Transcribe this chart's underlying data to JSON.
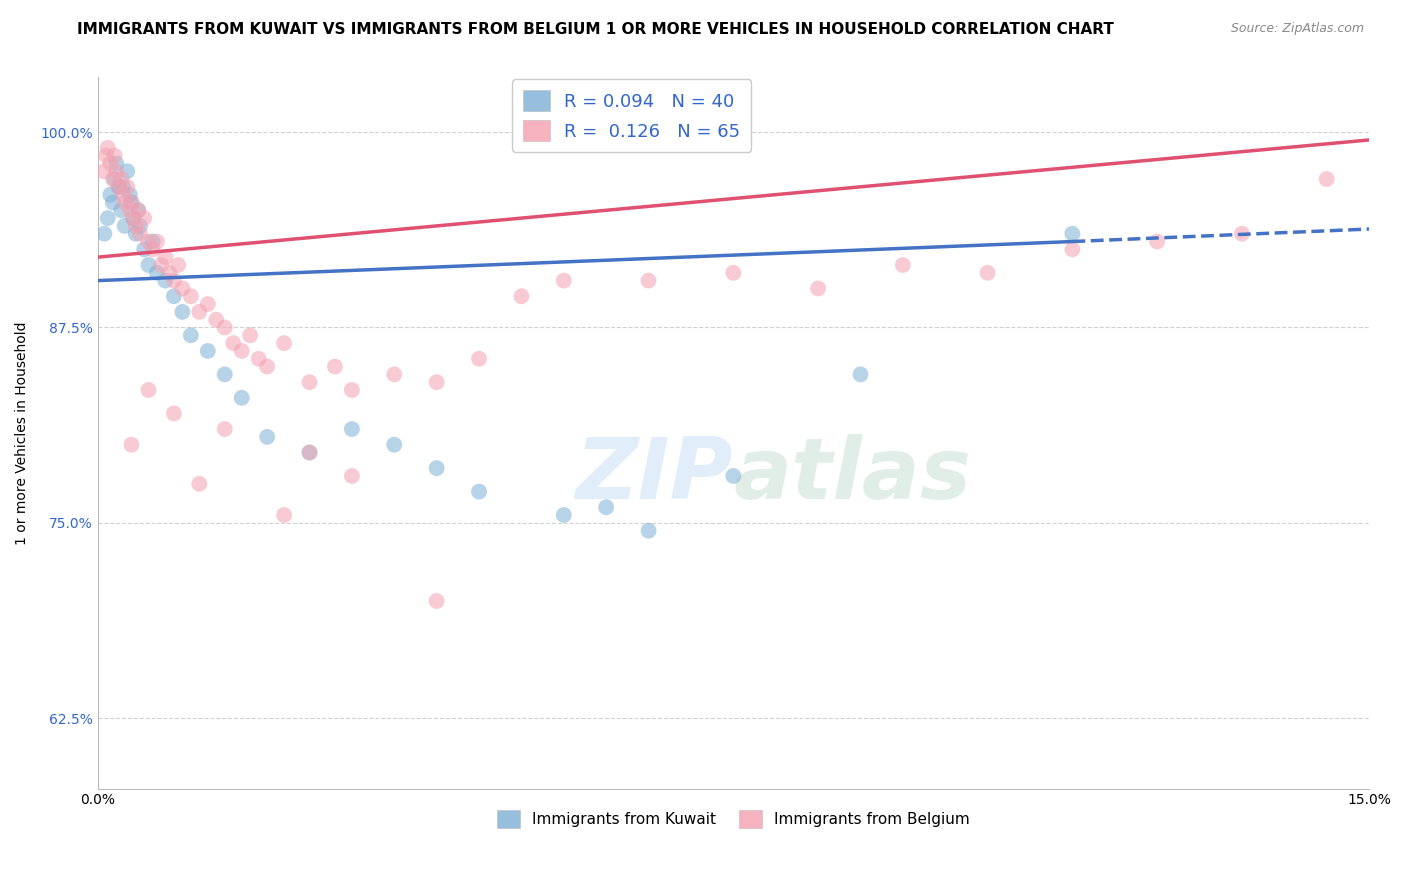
{
  "title": "IMMIGRANTS FROM KUWAIT VS IMMIGRANTS FROM BELGIUM 1 OR MORE VEHICLES IN HOUSEHOLD CORRELATION CHART",
  "source": "Source: ZipAtlas.com",
  "xlabel": "",
  "ylabel": "1 or more Vehicles in Household",
  "xlim": [
    0.0,
    15.0
  ],
  "ylim": [
    58.0,
    103.5
  ],
  "xticks": [
    0.0,
    5.0,
    10.0,
    15.0
  ],
  "xticklabels": [
    "0.0%",
    "",
    "",
    "15.0%"
  ],
  "yticks": [
    62.5,
    75.0,
    87.5,
    100.0
  ],
  "yticklabels": [
    "62.5%",
    "75.0%",
    "87.5%",
    "100.0%"
  ],
  "kuwait_R": 0.094,
  "kuwait_N": 40,
  "belgium_R": 0.126,
  "belgium_N": 65,
  "kuwait_color": "#7BAFD4",
  "belgium_color": "#F4A0B0",
  "kuwait_line_color": "#4472C4",
  "belgium_line_color": "#E05070",
  "kuwait_scatter_x": [
    0.08,
    0.12,
    0.15,
    0.18,
    0.2,
    0.22,
    0.25,
    0.28,
    0.3,
    0.32,
    0.35,
    0.38,
    0.4,
    0.42,
    0.45,
    0.48,
    0.5,
    0.55,
    0.6,
    0.65,
    0.7,
    0.8,
    0.9,
    1.0,
    1.1,
    1.3,
    1.5,
    1.7,
    2.0,
    2.5,
    3.0,
    3.5,
    4.0,
    4.5,
    5.5,
    6.0,
    6.5,
    7.5,
    9.0,
    11.5
  ],
  "kuwait_scatter_y": [
    93.5,
    94.5,
    96.0,
    95.5,
    97.0,
    98.0,
    96.5,
    95.0,
    96.5,
    94.0,
    97.5,
    96.0,
    95.5,
    94.5,
    93.5,
    95.0,
    94.0,
    92.5,
    91.5,
    93.0,
    91.0,
    90.5,
    89.5,
    88.5,
    87.0,
    86.0,
    84.5,
    83.0,
    80.5,
    79.5,
    81.0,
    80.0,
    78.5,
    77.0,
    75.5,
    76.0,
    74.5,
    78.0,
    84.5,
    93.5
  ],
  "belgium_scatter_x": [
    0.07,
    0.1,
    0.12,
    0.15,
    0.18,
    0.2,
    0.22,
    0.25,
    0.28,
    0.3,
    0.32,
    0.35,
    0.38,
    0.4,
    0.42,
    0.45,
    0.48,
    0.5,
    0.55,
    0.6,
    0.65,
    0.7,
    0.75,
    0.8,
    0.85,
    0.9,
    0.95,
    1.0,
    1.1,
    1.2,
    1.3,
    1.4,
    1.5,
    1.6,
    1.7,
    1.8,
    1.9,
    2.0,
    2.2,
    2.5,
    2.8,
    3.0,
    3.5,
    4.0,
    4.5,
    5.0,
    5.5,
    6.5,
    7.5,
    8.5,
    9.5,
    10.5,
    11.5,
    12.5,
    13.5,
    14.5,
    0.9,
    1.5,
    2.5,
    3.0,
    0.6,
    0.4,
    1.2,
    2.2,
    4.0
  ],
  "belgium_scatter_y": [
    97.5,
    98.5,
    99.0,
    98.0,
    97.0,
    98.5,
    97.5,
    96.5,
    97.0,
    96.0,
    95.5,
    96.5,
    95.0,
    95.5,
    94.5,
    94.0,
    95.0,
    93.5,
    94.5,
    93.0,
    92.5,
    93.0,
    91.5,
    92.0,
    91.0,
    90.5,
    91.5,
    90.0,
    89.5,
    88.5,
    89.0,
    88.0,
    87.5,
    86.5,
    86.0,
    87.0,
    85.5,
    85.0,
    86.5,
    84.0,
    85.0,
    83.5,
    84.5,
    84.0,
    85.5,
    89.5,
    90.5,
    90.5,
    91.0,
    90.0,
    91.5,
    91.0,
    92.5,
    93.0,
    93.5,
    97.0,
    82.0,
    81.0,
    79.5,
    78.0,
    83.5,
    80.0,
    77.5,
    75.5,
    70.0
  ],
  "kuwait_trend_x0": 0.0,
  "kuwait_trend_y0": 90.5,
  "kuwait_trend_x1": 11.5,
  "kuwait_trend_y1": 93.0,
  "kuwait_trend_x2": 15.0,
  "kuwait_trend_y2": 93.8,
  "belgium_trend_x0": 0.0,
  "belgium_trend_y0": 92.0,
  "belgium_trend_x1": 15.0,
  "belgium_trend_y1": 99.5,
  "background_color": "#FFFFFF",
  "grid_color": "#CCCCCC",
  "title_fontsize": 11,
  "axis_fontsize": 10,
  "tick_fontsize": 10,
  "watermark_color": "#AACCEE",
  "watermark_alpha": 0.35
}
